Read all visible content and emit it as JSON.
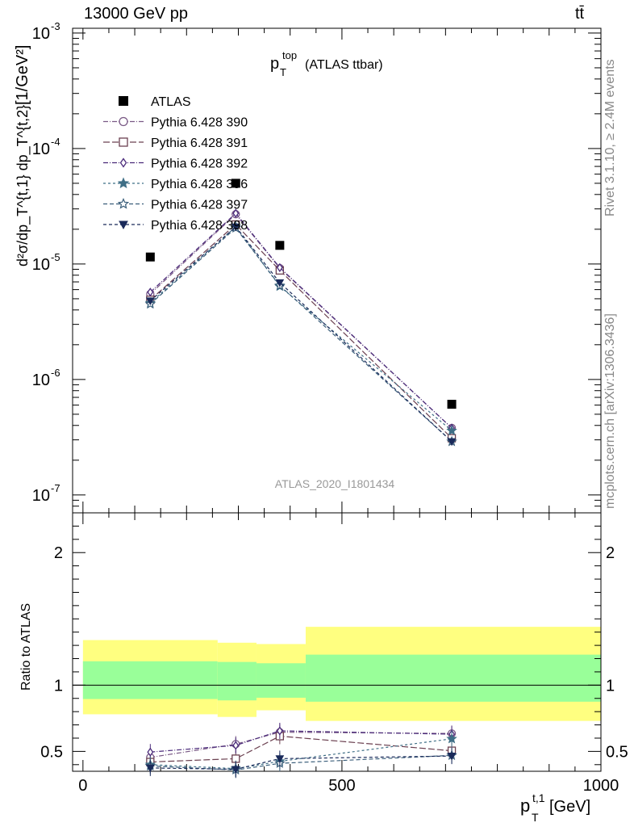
{
  "header": {
    "left": "13000 GeV pp",
    "right": "tt̄"
  },
  "side_labels": {
    "rivet": "Rivet 3.1.10, ≥ 2.4M events",
    "mcplots": "mcplots.cern.ch [arXiv:1306.3436]"
  },
  "chart_data": [
    {
      "type": "scatter",
      "panel": "main",
      "title": "p_T^top (ATLAS ttbar)",
      "title_main": "p",
      "title_sup": "top",
      "title_sub": "T",
      "title_rest": "(ATLAS ttbar)",
      "ylabel": "d^2σ^{fid} / dp_T^{t,1} dp_T^{t,2} (1/σ) dσ ... [1/GeV^2]",
      "ylabel_unit": "[1/GeV",
      "ylabel_unit_sup": "2",
      "ylabel_unit_close": "]",
      "yscale": "log",
      "ylim": [
        7e-08,
        0.0011
      ],
      "xlim": [
        -20,
        1000
      ],
      "ytick_labels": [
        "10",
        "10",
        "10",
        "10",
        "10"
      ],
      "ytick_exponents": [
        "-7",
        "-6",
        "-5",
        "-4",
        "-3"
      ],
      "ytick_values": [
        1e-07,
        1e-06,
        1e-05,
        0.0001,
        0.001
      ],
      "watermark": "ATLAS_2020_I1801434",
      "legend_position": "top-left",
      "data_series": {
        "name": "ATLAS",
        "x": [
          130,
          295,
          380,
          712
        ],
        "y": [
          1.15e-05,
          5e-05,
          1.45e-05,
          6.1e-07
        ]
      },
      "series": [
        {
          "name": "Pythia 6.428 390",
          "marker": "circle-open",
          "color": "#7a5a86",
          "dash": "6,2,1,2",
          "x": [
            130,
            295,
            380,
            712
          ],
          "y": [
            5.5e-06,
            2.7e-05,
            9.2e-06,
            3.8e-07
          ]
        },
        {
          "name": "Pythia 6.428 391",
          "marker": "square-open",
          "color": "#6b4050",
          "dash": "8,3",
          "x": [
            130,
            295,
            380,
            712
          ],
          "y": [
            4.9e-06,
            2.2e-05,
            8.8e-06,
            3.1e-07
          ]
        },
        {
          "name": "Pythia 6.428 392",
          "marker": "diamond-open",
          "color": "#4a2a7a",
          "dash": "6,2,1,2",
          "x": [
            130,
            295,
            380,
            712
          ],
          "y": [
            5.7e-06,
            2.75e-05,
            9.3e-06,
            3.8e-07
          ]
        },
        {
          "name": "Pythia 6.428 396",
          "marker": "star-filled",
          "color": "#3f6f86",
          "dash": "3,3",
          "x": [
            130,
            295,
            380,
            712
          ],
          "y": [
            4.6e-06,
            2.1e-05,
            6.4e-06,
            3.6e-07
          ]
        },
        {
          "name": "Pythia 6.428 397",
          "marker": "star-open",
          "color": "#3a5e7a",
          "dash": "5,3",
          "x": [
            130,
            295,
            380,
            712
          ],
          "y": [
            4.5e-06,
            2.05e-05,
            6.5e-06,
            2.9e-07
          ]
        },
        {
          "name": "Pythia 6.428 398",
          "marker": "triangle-down-filled",
          "color": "#1a2a5a",
          "dash": "4,3",
          "x": [
            130,
            295,
            380,
            712
          ],
          "y": [
            4.8e-06,
            2.1e-05,
            6.9e-06,
            2.9e-07
          ]
        }
      ]
    },
    {
      "type": "scatter",
      "panel": "ratio",
      "ylabel": "Ratio to ATLAS",
      "xlabel": "p_T^{t,1} [GeV]",
      "xlabel_main": "p",
      "xlabel_sup": "t,1",
      "xlabel_sub": "T",
      "xlabel_rest": "[GeV]",
      "xlim": [
        -20,
        1000
      ],
      "ylim": [
        0.35,
        2.3
      ],
      "xtick_labels": [
        "0",
        "500",
        "1000"
      ],
      "xtick_values": [
        0,
        500,
        1000
      ],
      "ytick_labels": [
        "0.5",
        "1",
        "2"
      ],
      "ytick_values": [
        0.5,
        1,
        2
      ],
      "bands": [
        {
          "x0": 0,
          "x1": 260,
          "inner": [
            0.895,
            1.18
          ],
          "outer": [
            0.78,
            1.34
          ]
        },
        {
          "x0": 260,
          "x1": 335,
          "inner": [
            0.885,
            1.175
          ],
          "outer": [
            0.76,
            1.32
          ]
        },
        {
          "x0": 335,
          "x1": 430,
          "inner": [
            0.905,
            1.165
          ],
          "outer": [
            0.81,
            1.31
          ]
        },
        {
          "x0": 430,
          "x1": 1000,
          "inner": [
            0.875,
            1.23
          ],
          "outer": [
            0.73,
            1.44
          ]
        }
      ],
      "band_colors": {
        "outer": "#ffff80",
        "inner": "#99ff99"
      },
      "series": [
        {
          "name": "Pythia 6.428 390",
          "x": [
            130,
            295,
            380,
            712
          ],
          "y": [
            0.455,
            0.555,
            0.645,
            0.635
          ]
        },
        {
          "name": "Pythia 6.428 391",
          "x": [
            130,
            295,
            380,
            712
          ],
          "y": [
            0.42,
            0.445,
            0.615,
            0.505
          ]
        },
        {
          "name": "Pythia 6.428 392",
          "x": [
            130,
            295,
            380,
            712
          ],
          "y": [
            0.495,
            0.545,
            0.655,
            0.63
          ]
        },
        {
          "name": "Pythia 6.428 396",
          "x": [
            130,
            295,
            380,
            712
          ],
          "y": [
            0.4,
            0.37,
            0.425,
            0.595
          ]
        },
        {
          "name": "Pythia 6.428 397",
          "x": [
            130,
            295,
            380,
            712
          ],
          "y": [
            0.39,
            0.36,
            0.41,
            0.47
          ]
        },
        {
          "name": "Pythia 6.428 398",
          "x": [
            130,
            295,
            380,
            712
          ],
          "y": [
            0.375,
            0.365,
            0.445,
            0.465
          ]
        }
      ]
    }
  ]
}
